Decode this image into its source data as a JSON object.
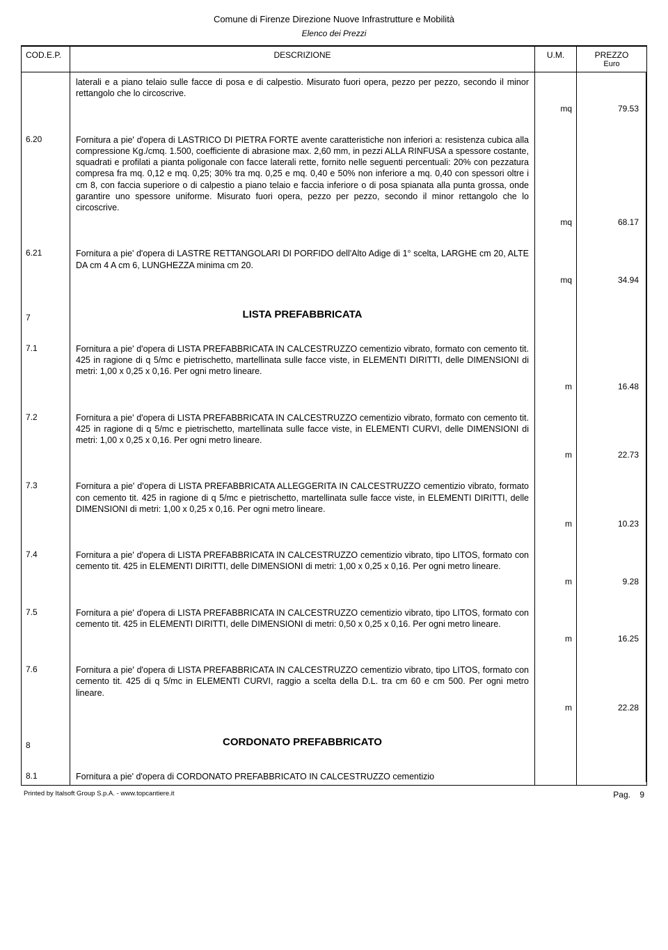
{
  "header": {
    "org": "Comune di Firenze Direzione Nuove Infrastrutture e Mobilità",
    "subtitle": "Elenco dei Prezzi"
  },
  "columns": {
    "code": "COD.E.P.",
    "desc": "DESCRIZIONE",
    "um": "U.M.",
    "price": "PREZZO",
    "price_sub": "Euro"
  },
  "rows": [
    {
      "code": "",
      "desc": "laterali e a piano telaio sulle facce di posa e di calpestio. Misurato fuori opera, pezzo per pezzo, secondo il minor rettangolo che lo circoscrive.",
      "um": "mq",
      "price": "79.53"
    },
    {
      "code": "6.20",
      "desc": "Fornitura a pie' d'opera di LASTRICO DI PIETRA FORTE avente caratteristiche non inferiori a: resistenza cubica alla compressione Kg./cmq. 1.500, coefficiente di abrasione max. 2,60 mm, in pezzi ALLA RINFUSA a spessore costante, squadrati e profilati a pianta poligonale con facce laterali rette, fornito nelle seguenti percentuali: 20% con pezzatura compresa fra mq. 0,12 e mq. 0,25; 30% tra mq. 0,25 e mq. 0,40 e 50% non inferiore a mq. 0,40 con spessori oltre i cm 8, con faccia superiore o di calpestio a piano telaio e faccia inferiore o di posa spianata alla punta grossa, onde garantire uno spessore uniforme. Misurato fuori opera, pezzo per pezzo, secondo il minor rettangolo che lo circoscrive.",
      "um": "mq",
      "price": "68.17"
    },
    {
      "code": "6.21",
      "desc": "Fornitura a pie' d'opera di LASTRE RETTANGOLARI DI PORFIDO dell'Alto Adige di 1° scelta, LARGHE cm 20, ALTE DA cm 4 A cm 6, LUNGHEZZA minima cm 20.",
      "um": "mq",
      "price": "34.94"
    },
    {
      "code": "7",
      "section": "LISTA PREFABBRICATA"
    },
    {
      "code": "7.1",
      "desc": "Fornitura a pie' d'opera di LISTA PREFABBRICATA IN CALCESTRUZZO cementizio vibrato, formato con cemento tit. 425 in ragione di q 5/mc e pietrischetto, martellinata sulle facce viste, in ELEMENTI DIRITTI, delle DIMENSIONI di metri: 1,00 x 0,25 x 0,16. Per ogni metro lineare.",
      "um": "m",
      "price": "16.48"
    },
    {
      "code": "7.2",
      "desc": "Fornitura a pie' d'opera di LISTA PREFABBRICATA IN CALCESTRUZZO cementizio vibrato, formato con cemento tit. 425 in ragione di q 5/mc e pietrischetto, martellinata sulle facce viste, in ELEMENTI CURVI, delle DIMENSIONI di metri: 1,00 x 0,25 x 0,16. Per ogni metro lineare.",
      "um": "m",
      "price": "22.73"
    },
    {
      "code": "7.3",
      "desc": "Fornitura a pie' d'opera di LISTA PREFABBRICATA ALLEGGERITA IN CALCESTRUZZO cementizio vibrato, formato con cemento tit. 425 in ragione di q 5/mc e pietrischetto, martellinata sulle facce viste, in ELEMENTI DIRITTI, delle DIMENSIONI di metri: 1,00 x 0,25 x 0,16. Per ogni metro lineare.",
      "um": "m",
      "price": "10.23"
    },
    {
      "code": "7.4",
      "desc": "Fornitura a pie' d'opera di LISTA PREFABBRICATA IN CALCESTRUZZO cementizio vibrato, tipo LITOS, formato con cemento tit. 425 in ELEMENTI DIRITTI, delle DIMENSIONI di metri: 1,00 x 0,25 x 0,16. Per ogni metro lineare.",
      "um": "m",
      "price": "9.28"
    },
    {
      "code": "7.5",
      "desc": "Fornitura a pie' d'opera di LISTA PREFABBRICATA IN CALCESTRUZZO cementizio vibrato, tipo LITOS, formato con cemento tit. 425 in ELEMENTI DIRITTI, delle DIMENSIONI di metri: 0,50 x 0,25 x 0,16. Per ogni metro lineare.",
      "um": "m",
      "price": "16.25"
    },
    {
      "code": "7.6",
      "desc": "Fornitura a pie' d'opera di LISTA PREFABBRICATA IN CALCESTRUZZO cementizio vibrato, tipo LITOS, formato con cemento tit. 425 di q 5/mc in ELEMENTI CURVI, raggio a scelta della D.L. tra cm 60 e cm 500. Per ogni metro lineare.",
      "um": "m",
      "price": "22.28"
    },
    {
      "code": "8",
      "section": "CORDONATO PREFABBRICATO"
    },
    {
      "code": "8.1",
      "desc": "Fornitura a pie' d'opera di CORDONATO PREFABBRICATO IN CALCESTRUZZO cementizio",
      "last": true
    }
  ],
  "footer": {
    "printed": "Printed by Italsoft Group S.p.A. - www.topcantiere.it",
    "page_label": "Pag.",
    "page_num": "9"
  }
}
